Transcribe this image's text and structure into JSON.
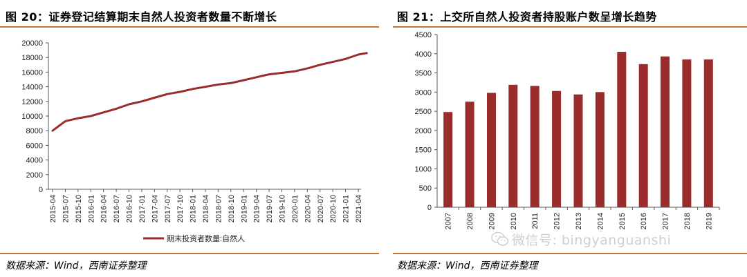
{
  "left": {
    "title": "图 20：证券登记结算期末自然人投资者数量不断增长",
    "source": "数据来源：Wind，西南证券整理",
    "chart_data": {
      "type": "line",
      "title": "图 20：证券登记结算期末自然人投资者数量不断增长",
      "ylim": [
        0,
        20000
      ],
      "yticks": [
        0,
        2000,
        4000,
        6000,
        8000,
        10000,
        12000,
        14000,
        16000,
        18000,
        20000
      ],
      "xticks": [
        "2015-04",
        "2015-07",
        "2015-10",
        "2016-01",
        "2016-04",
        "2016-07",
        "2016-10",
        "2017-01",
        "2017-04",
        "2017-07",
        "2017-10",
        "2018-01",
        "2018-04",
        "2018-07",
        "2018-10",
        "2019-01",
        "2019-04",
        "2019-07",
        "2019-10",
        "2020-01",
        "2020-04",
        "2020-07",
        "2020-10",
        "2021-01",
        "2021-04"
      ],
      "legend_position": "bottom",
      "grid": false,
      "series": [
        {
          "name": "期末投资者数量:自然人",
          "color": "#9b2c2c",
          "x": [
            "2015-04",
            "2015-07",
            "2015-10",
            "2016-01",
            "2016-04",
            "2016-07",
            "2016-10",
            "2017-01",
            "2017-04",
            "2017-07",
            "2017-10",
            "2018-01",
            "2018-04",
            "2018-07",
            "2018-10",
            "2019-01",
            "2019-04",
            "2019-07",
            "2019-10",
            "2020-01",
            "2020-04",
            "2020-07",
            "2020-10",
            "2021-01",
            "2021-04",
            "2021-06"
          ],
          "values": [
            8000,
            9300,
            9700,
            10000,
            10500,
            11000,
            11600,
            12000,
            12500,
            13000,
            13300,
            13700,
            14000,
            14300,
            14500,
            14900,
            15300,
            15700,
            15900,
            16100,
            16500,
            17000,
            17400,
            17800,
            18400,
            18600
          ]
        }
      ]
    }
  },
  "right": {
    "title": "图 21：上交所自然人投资者持股账户数呈增长趋势",
    "source": "数据来源：Wind，西南证券整理",
    "chart_data": {
      "type": "bar",
      "title": "图 21：上交所自然人投资者持股账户数呈增长趋势",
      "ylim": [
        0,
        4500
      ],
      "yticks": [
        0,
        500,
        1000,
        1500,
        2000,
        2500,
        3000,
        3500,
        4000,
        4500
      ],
      "categories": [
        "2007",
        "2008",
        "2009",
        "2010",
        "2011",
        "2012",
        "2013",
        "2014",
        "2015",
        "2016",
        "2017",
        "2018",
        "2019"
      ],
      "grid": false,
      "series": [
        {
          "color": "#9b2c2c",
          "values": [
            2480,
            2750,
            2980,
            3190,
            3160,
            3030,
            2940,
            3000,
            4050,
            3730,
            3930,
            3850,
            3850
          ]
        }
      ]
    }
  },
  "watermark": {
    "text": "微信号: bingyanguanshi",
    "icon": "wechat-icon"
  }
}
